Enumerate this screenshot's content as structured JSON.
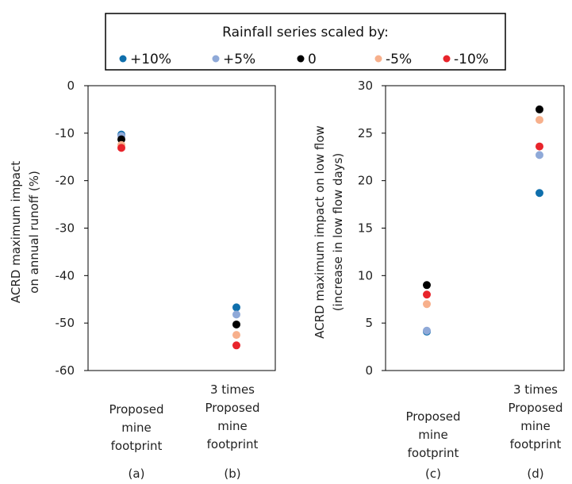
{
  "legend": {
    "title": "Rainfall series scaled by:",
    "entries": [
      {
        "label": "+10%",
        "color": "#0f6fac"
      },
      {
        "label": "+5%",
        "color": "#8fa9d8"
      },
      {
        "label": "0",
        "color": "#000000"
      },
      {
        "label": "-5%",
        "color": "#f7b08c"
      },
      {
        "label": "-10%",
        "color": "#e8242b"
      }
    ]
  },
  "chart_data": [
    {
      "type": "scatter",
      "ylabel": [
        "ACRD maximum impact",
        "on annual runoff (%)"
      ],
      "ylim": [
        -60,
        0
      ],
      "yticks": [
        0,
        -10,
        -20,
        -30,
        -40,
        -50,
        -60
      ],
      "categories": [
        {
          "label": [
            "Proposed",
            "mine",
            "footprint"
          ],
          "panel": "(a)"
        },
        {
          "label": [
            "3 times",
            "Proposed",
            "mine",
            "footprint"
          ],
          "panel": "(b)"
        }
      ],
      "series": [
        {
          "name": "+10%",
          "values": [
            -10.3,
            -46.7
          ]
        },
        {
          "name": "+5%",
          "values": [
            -10.6,
            -48.2
          ]
        },
        {
          "name": "0",
          "values": [
            -11.3,
            -50.3
          ]
        },
        {
          "name": "-5%",
          "values": [
            -12.5,
            -52.5
          ]
        },
        {
          "name": "-10%",
          "values": [
            -13.1,
            -54.7
          ]
        }
      ]
    },
    {
      "type": "scatter",
      "ylabel": [
        "ACRD maximum impact on low flow",
        "(increase in low flow days)"
      ],
      "ylim": [
        0,
        30
      ],
      "yticks": [
        0,
        5,
        10,
        15,
        20,
        25,
        30
      ],
      "categories": [
        {
          "label": [
            "Proposed",
            "mine",
            "footprint"
          ],
          "panel": "(c)"
        },
        {
          "label": [
            "3 times",
            "Proposed",
            "mine",
            "footprint"
          ],
          "panel": "(d)"
        }
      ],
      "series": [
        {
          "name": "+10%",
          "values": [
            4.1,
            18.7
          ]
        },
        {
          "name": "+5%",
          "values": [
            4.2,
            22.7
          ]
        },
        {
          "name": "0",
          "values": [
            9.0,
            27.5
          ]
        },
        {
          "name": "-5%",
          "values": [
            7.0,
            26.4
          ]
        },
        {
          "name": "-10%",
          "values": [
            8.0,
            23.6
          ]
        }
      ]
    }
  ]
}
